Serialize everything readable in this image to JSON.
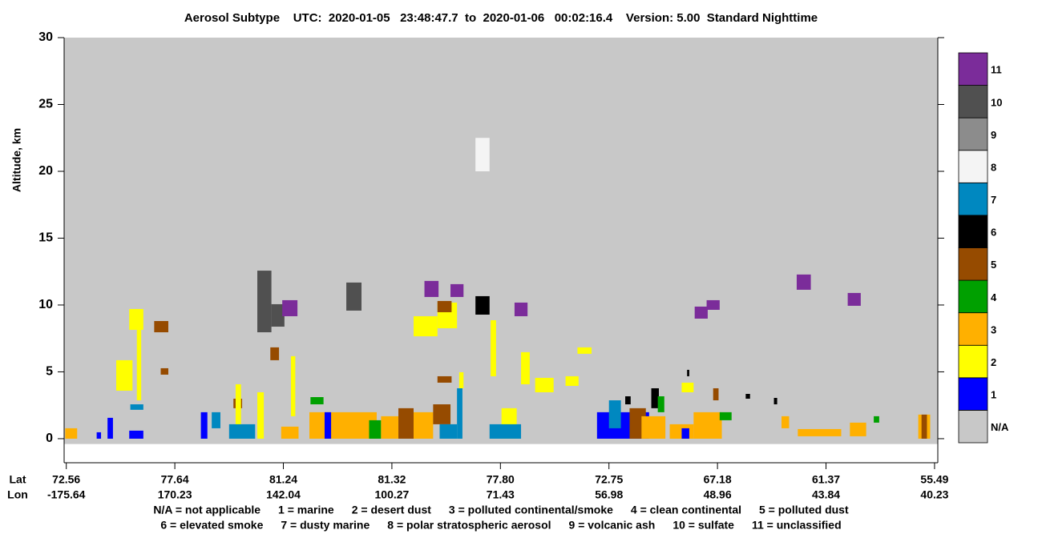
{
  "chart_data": {
    "type": "curtain",
    "title": "Aerosol Subtype    UTC:  2020-01-05   23:48:47.7  to  2020-01-06   00:02:16.4    Version: 5.00  Standard Nighttime",
    "ylabel": "Altitude, km",
    "ylim": [
      -1.8,
      30
    ],
    "yticks": [
      0,
      5,
      10,
      15,
      20,
      25,
      30
    ],
    "xlim": [
      -0.02,
      8.03
    ],
    "x_row_labels": [
      "Lat",
      "Lon"
    ],
    "xticks": [
      {
        "value": 0,
        "lat": "72.56",
        "lon": "-175.64"
      },
      {
        "value": 1,
        "lat": "77.64",
        "lon": "170.23"
      },
      {
        "value": 2,
        "lat": "81.24",
        "lon": "142.04"
      },
      {
        "value": 3,
        "lat": "81.32",
        "lon": "100.27"
      },
      {
        "value": 4,
        "lat": "77.80",
        "lon": "71.43"
      },
      {
        "value": 5,
        "lat": "72.75",
        "lon": "56.98"
      },
      {
        "value": 6,
        "lat": "67.18",
        "lon": "48.96"
      },
      {
        "value": 7,
        "lat": "61.37",
        "lon": "43.84"
      },
      {
        "value": 8,
        "lat": "55.49",
        "lon": "40.23"
      }
    ],
    "classes": [
      {
        "code": "N/A",
        "color": "#c8c8c8",
        "description": "N/A = not applicable"
      },
      {
        "code": "1",
        "color": "#0000ff",
        "description": "1 = marine"
      },
      {
        "code": "2",
        "color": "#ffff00",
        "description": "2 = desert dust"
      },
      {
        "code": "3",
        "color": "#ffb000",
        "description": "3 = polluted continental/smoke"
      },
      {
        "code": "4",
        "color": "#00a000",
        "description": "4 = clean continental"
      },
      {
        "code": "5",
        "color": "#964b00",
        "description": "5 = polluted dust"
      },
      {
        "code": "6",
        "color": "#000000",
        "description": "6 = elevated smoke"
      },
      {
        "code": "7",
        "color": "#0088c0",
        "description": "7 = dusty marine"
      },
      {
        "code": "8",
        "color": "#f4f4f4",
        "description": "8 = polar stratospheric aerosol"
      },
      {
        "code": "9",
        "color": "#8c8c8c",
        "description": "9 = volcanic ash"
      },
      {
        "code": "10",
        "color": "#505050",
        "description": "10 = sulfate"
      },
      {
        "code": "11",
        "color": "#7b2c9a",
        "description": "11 = unclassified"
      }
    ],
    "patches": [
      [
        -0.02,
        8.03,
        -0.4,
        30,
        0
      ],
      [
        -0.01,
        0.1,
        0,
        0.78,
        3
      ],
      [
        1.76,
        1.89,
        7.96,
        12.57,
        10
      ],
      [
        1.89,
        2.01,
        8.38,
        10.06,
        10
      ],
      [
        1.99,
        2.13,
        9.16,
        10.36,
        11
      ],
      [
        2.58,
        2.72,
        9.58,
        11.68,
        10
      ],
      [
        3.3,
        3.43,
        10.6,
        11.8,
        11
      ],
      [
        3.54,
        3.66,
        10.6,
        11.56,
        11
      ],
      [
        3.77,
        3.9,
        9.28,
        10.66,
        6
      ],
      [
        3.77,
        3.9,
        20.0,
        22.5,
        8
      ],
      [
        4.13,
        4.25,
        9.16,
        10.18,
        11
      ],
      [
        5.79,
        5.91,
        8.98,
        9.88,
        11
      ],
      [
        5.9,
        6.02,
        9.64,
        10.36,
        11
      ],
      [
        6.73,
        6.86,
        11.14,
        12.28,
        11
      ],
      [
        7.2,
        7.32,
        9.94,
        10.9,
        11
      ],
      [
        0.58,
        0.71,
        8.14,
        9.7,
        2
      ],
      [
        0.81,
        0.94,
        7.96,
        8.8,
        5
      ],
      [
        0.46,
        0.61,
        3.59,
        5.87,
        2
      ],
      [
        0.59,
        0.71,
        2.16,
        2.57,
        7
      ],
      [
        0.58,
        0.71,
        0,
        0.6,
        1
      ],
      [
        0.87,
        0.94,
        4.79,
        5.27,
        5
      ],
      [
        1.76,
        1.82,
        0,
        3.47,
        2
      ],
      [
        1.88,
        1.96,
        5.87,
        6.83,
        5
      ],
      [
        2.07,
        2.11,
        1.68,
        6.17,
        2
      ],
      [
        2.25,
        2.37,
        2.57,
        3.11,
        4
      ],
      [
        2.24,
        2.86,
        0,
        1.98,
        3
      ],
      [
        1.98,
        2.14,
        0,
        0.9,
        3
      ],
      [
        2.38,
        2.44,
        0,
        1.98,
        1
      ],
      [
        2.79,
        2.9,
        0,
        1.38,
        4
      ],
      [
        2.9,
        3.06,
        0,
        1.68,
        3
      ],
      [
        3.06,
        3.2,
        0,
        2.28,
        5
      ],
      [
        3.2,
        3.38,
        0,
        1.98,
        3
      ],
      [
        3.38,
        3.54,
        1.08,
        2.57,
        5
      ],
      [
        3.44,
        3.6,
        0,
        1.08,
        7
      ],
      [
        3.42,
        3.55,
        4.19,
        4.67,
        5
      ],
      [
        3.2,
        3.42,
        7.66,
        9.16,
        2
      ],
      [
        3.42,
        3.6,
        8.26,
        10.18,
        2
      ],
      [
        3.42,
        3.55,
        9.46,
        10.3,
        5
      ],
      [
        3.6,
        3.65,
        0,
        3.77,
        7
      ],
      [
        3.62,
        3.66,
        3.77,
        4.97,
        2
      ],
      [
        3.91,
        3.96,
        4.67,
        8.86,
        2
      ],
      [
        4.01,
        4.15,
        0,
        2.28,
        2
      ],
      [
        3.9,
        4.19,
        0,
        1.08,
        7
      ],
      [
        4.19,
        4.27,
        4.07,
        6.47,
        2
      ],
      [
        4.32,
        4.49,
        3.47,
        4.55,
        2
      ],
      [
        4.6,
        4.72,
        3.95,
        4.67,
        2
      ],
      [
        4.71,
        4.84,
        6.35,
        6.83,
        2
      ],
      [
        4.89,
        5.37,
        0,
        1.98,
        1
      ],
      [
        5.0,
        5.11,
        0.78,
        2.87,
        7
      ],
      [
        5.19,
        5.34,
        0,
        2.28,
        5
      ],
      [
        5.3,
        5.52,
        0,
        1.68,
        3
      ],
      [
        5.15,
        5.2,
        2.57,
        3.17,
        6
      ],
      [
        5.39,
        5.46,
        2.28,
        3.77,
        6
      ],
      [
        5.45,
        5.51,
        1.98,
        3.17,
        4
      ],
      [
        5.56,
        5.78,
        0,
        1.08,
        3
      ],
      [
        5.67,
        5.74,
        0,
        0.78,
        1
      ],
      [
        5.78,
        6.04,
        0,
        1.98,
        3
      ],
      [
        6.02,
        6.13,
        1.38,
        1.98,
        4
      ],
      [
        5.96,
        6.01,
        2.87,
        3.77,
        5
      ],
      [
        5.72,
        5.74,
        4.67,
        5.15,
        6
      ],
      [
        5.67,
        5.78,
        3.47,
        4.19,
        2
      ],
      [
        6.26,
        6.3,
        2.99,
        3.35,
        6
      ],
      [
        6.52,
        6.55,
        2.57,
        3.05,
        6
      ],
      [
        6.59,
        6.66,
        0.78,
        1.68,
        3
      ],
      [
        6.74,
        7.14,
        0.18,
        0.72,
        3
      ],
      [
        7.22,
        7.37,
        0.18,
        1.2,
        3
      ],
      [
        7.44,
        7.49,
        1.2,
        1.68,
        4
      ],
      [
        7.85,
        7.96,
        0,
        1.8,
        3
      ],
      [
        7.88,
        7.93,
        0,
        1.8,
        5
      ],
      [
        0.38,
        0.43,
        0,
        1.56,
        1
      ],
      [
        0.28,
        0.32,
        0,
        0.48,
        1
      ],
      [
        1.24,
        1.3,
        0,
        1.98,
        1
      ],
      [
        1.34,
        1.42,
        0.78,
        1.98,
        7
      ],
      [
        1.54,
        1.62,
        2.28,
        2.99,
        5
      ],
      [
        1.56,
        1.61,
        0,
        4.07,
        2
      ],
      [
        1.5,
        1.74,
        0,
        1.08,
        7
      ],
      [
        0.65,
        0.69,
        2.87,
        8.26,
        2
      ]
    ]
  }
}
